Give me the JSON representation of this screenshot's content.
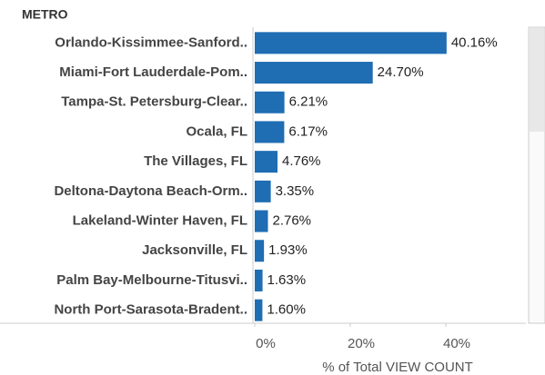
{
  "chart_data": {
    "type": "bar",
    "orientation": "horizontal",
    "header": "METRO",
    "x_label": "% of Total VIEW  COUNT",
    "categories": [
      "Orlando-Kissimmee-Sanford..",
      "Miami-Fort Lauderdale-Pom..",
      "Tampa-St. Petersburg-Clear..",
      "Ocala, FL",
      "The Villages, FL",
      "Deltona-Daytona Beach-Orm..",
      "Lakeland-Winter Haven, FL",
      "Jacksonville, FL",
      "Palm Bay-Melbourne-Titusvi..",
      "North Port-Sarasota-Bradent.."
    ],
    "values": [
      40.16,
      24.7,
      6.21,
      6.17,
      4.76,
      3.35,
      2.76,
      1.93,
      1.63,
      1.6
    ],
    "value_labels": [
      "40.16%",
      "24.70%",
      "6.21%",
      "6.17%",
      "4.76%",
      "3.35%",
      "2.76%",
      "1.93%",
      "1.63%",
      "1.60%"
    ],
    "color": "#1f6db3",
    "xlim": [
      0,
      56
    ],
    "xticks": [
      {
        "value": 0,
        "label": "0%"
      },
      {
        "value": 20,
        "label": "20%"
      },
      {
        "value": 40,
        "label": "40%"
      }
    ]
  }
}
